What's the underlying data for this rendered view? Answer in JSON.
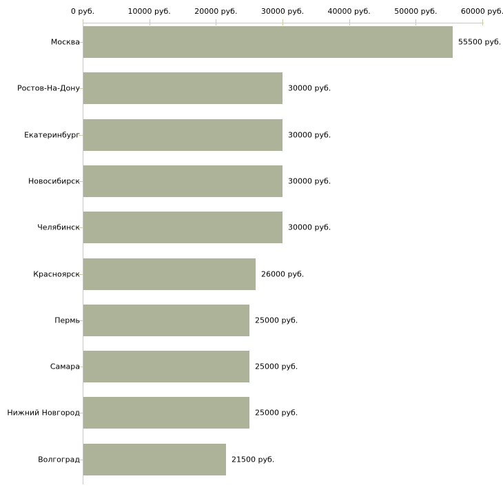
{
  "chart_data": {
    "type": "bar",
    "orientation": "horizontal",
    "categories": [
      "Москва",
      "Ростов-На-Дону",
      "Екатеринбург",
      "Новосибирск",
      "Челябинск",
      "Красноярск",
      "Пермь",
      "Самара",
      "Нижний Новгород",
      "Волгоград"
    ],
    "values": [
      55500,
      30000,
      30000,
      30000,
      30000,
      26000,
      25000,
      25000,
      25000,
      21500
    ],
    "value_labels": [
      "55500 руб.",
      "30000 руб.",
      "30000 руб.",
      "30000 руб.",
      "30000 руб.",
      "26000 руб.",
      "25000 руб.",
      "25000 руб.",
      "25000 руб.",
      "21500 руб."
    ],
    "x_ticks": {
      "values": [
        0,
        10000,
        20000,
        30000,
        40000,
        50000,
        60000
      ],
      "labels": [
        "0 руб.",
        "10000 руб.",
        "20000 руб.",
        "30000 руб.",
        "40000 руб.",
        "50000 руб.",
        "60000 руб."
      ]
    },
    "xlim": [
      0,
      60000
    ],
    "unit": "руб.",
    "xlabel": "",
    "ylabel": "",
    "title": "",
    "grid": false,
    "legend": false,
    "axis_position": "top",
    "colors": {
      "bar": "#adb398",
      "axis_line": "#c8c8c8",
      "tick": "#c9cba1",
      "text": "#000000",
      "background": "#ffffff"
    }
  }
}
